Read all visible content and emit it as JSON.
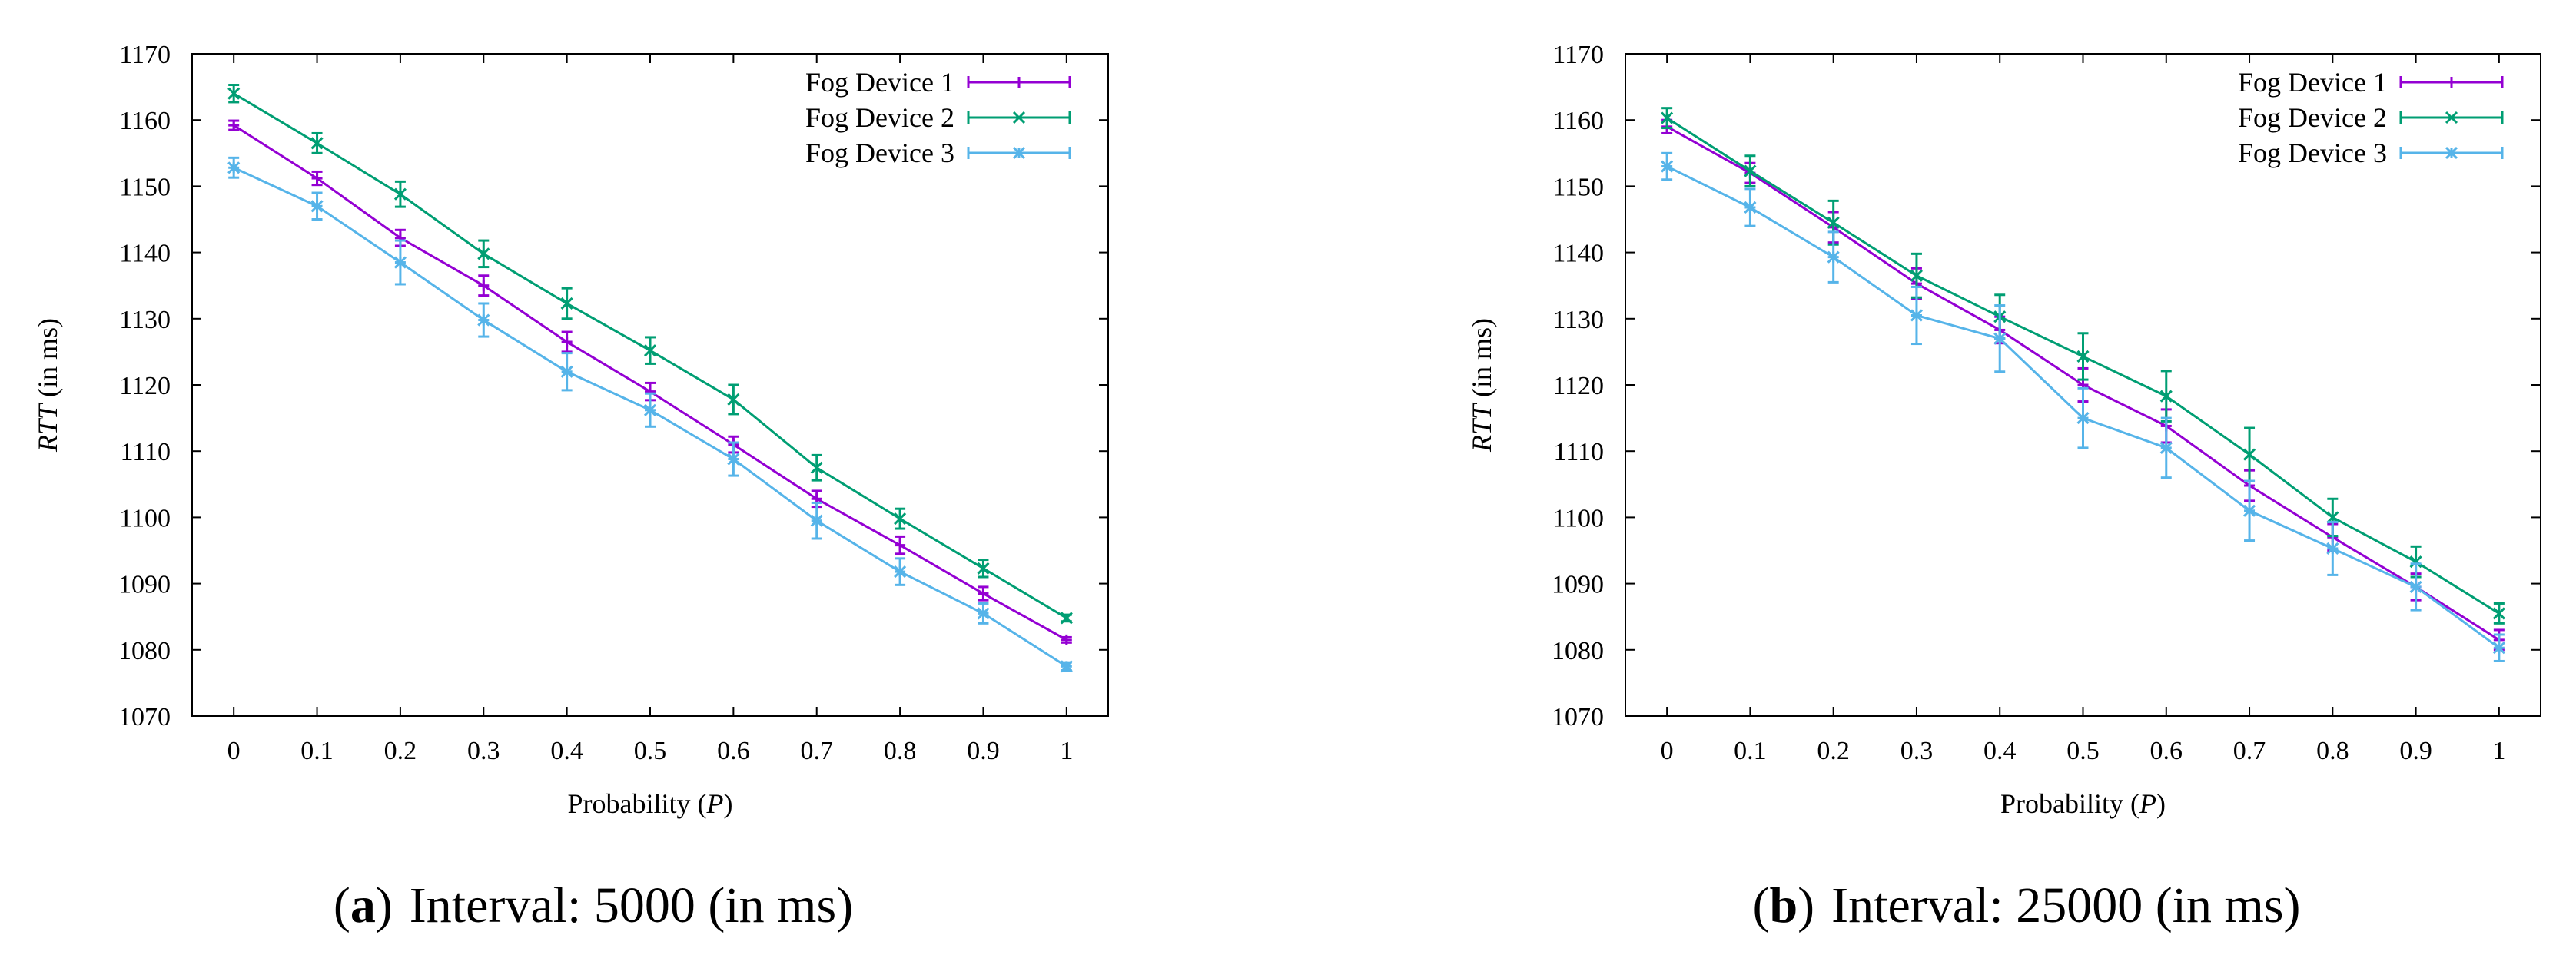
{
  "chart_data": [
    {
      "type": "line",
      "caption_letter": "a",
      "caption_text": "Interval: 5000 (in ms)",
      "xlabel_prefix": "Probability (",
      "xlabel_var": "P",
      "xlabel_suffix": ")",
      "ylabel_var": "RTT",
      "ylabel_suffix": " (in ms)",
      "x": [
        0,
        0.1,
        0.2,
        0.3,
        0.4,
        0.5,
        0.6,
        0.7,
        0.8,
        0.9,
        1
      ],
      "x_tick_labels": [
        "0",
        "0.1",
        "0.2",
        "0.3",
        "0.4",
        "0.5",
        "0.6",
        "0.7",
        "0.8",
        "0.9",
        "1"
      ],
      "xlim": [
        -0.05,
        1.05
      ],
      "ylim": [
        1070,
        1170
      ],
      "y_ticks": [
        1070,
        1080,
        1090,
        1100,
        1110,
        1120,
        1130,
        1140,
        1150,
        1160,
        1170
      ],
      "series": [
        {
          "name": "Fog Device 1",
          "color": "#9400D3",
          "marker": "plus",
          "values": [
            1159.2,
            1151.2,
            1142.2,
            1135.0,
            1126.5,
            1119.0,
            1111.0,
            1102.8,
            1095.8,
            1088.5,
            1081.5
          ],
          "errors": [
            0.7,
            1.0,
            1.2,
            1.5,
            1.5,
            1.3,
            1.2,
            1.2,
            1.3,
            1.0,
            0.4
          ]
        },
        {
          "name": "Fog Device 2",
          "color": "#009E73",
          "marker": "x",
          "values": [
            1164.0,
            1156.5,
            1148.8,
            1139.8,
            1132.3,
            1125.2,
            1117.8,
            1107.5,
            1099.8,
            1092.3,
            1084.8
          ],
          "errors": [
            1.3,
            1.5,
            1.9,
            2.0,
            2.3,
            2.0,
            2.2,
            1.9,
            1.5,
            1.3,
            0.5
          ]
        },
        {
          "name": "Fog Device 3",
          "color": "#56B4E9",
          "marker": "star",
          "values": [
            1152.8,
            1147.0,
            1138.5,
            1129.8,
            1122.0,
            1116.2,
            1108.8,
            1099.5,
            1091.8,
            1085.5,
            1077.5
          ],
          "errors": [
            1.5,
            2.0,
            3.3,
            2.5,
            2.8,
            2.5,
            2.5,
            2.7,
            2.0,
            1.5,
            0.6
          ]
        }
      ]
    },
    {
      "type": "line",
      "caption_letter": "b",
      "caption_text": "Interval: 25000 (in ms)",
      "xlabel_prefix": "Probability (",
      "xlabel_var": "P",
      "xlabel_suffix": ")",
      "ylabel_var": "RTT",
      "ylabel_suffix": " (in ms)",
      "x": [
        0,
        0.1,
        0.2,
        0.3,
        0.4,
        0.5,
        0.6,
        0.7,
        0.8,
        0.9,
        1
      ],
      "x_tick_labels": [
        "0",
        "0.1",
        "0.2",
        "0.3",
        "0.4",
        "0.5",
        "0.6",
        "0.7",
        "0.8",
        "0.9",
        "1"
      ],
      "xlim": [
        -0.05,
        1.05
      ],
      "ylim": [
        1070,
        1170
      ],
      "y_ticks": [
        1070,
        1080,
        1090,
        1100,
        1110,
        1120,
        1130,
        1140,
        1150,
        1160,
        1170
      ],
      "series": [
        {
          "name": "Fog Device 1",
          "color": "#9400D3",
          "marker": "plus",
          "values": [
            1159.0,
            1152.0,
            1143.8,
            1135.3,
            1128.3,
            1120.0,
            1113.8,
            1104.8,
            1097.0,
            1089.5,
            1081.5
          ],
          "errors": [
            1.0,
            1.5,
            2.3,
            2.3,
            2.0,
            2.5,
            2.5,
            2.3,
            2.0,
            2.0,
            1.5
          ]
        },
        {
          "name": "Fog Device 2",
          "color": "#009E73",
          "marker": "x",
          "values": [
            1160.3,
            1152.3,
            1144.5,
            1136.5,
            1130.3,
            1124.3,
            1118.3,
            1109.5,
            1100.0,
            1093.3,
            1085.5
          ],
          "errors": [
            1.5,
            2.3,
            3.3,
            3.3,
            3.3,
            3.5,
            3.8,
            4.0,
            2.8,
            2.3,
            1.5
          ]
        },
        {
          "name": "Fog Device 3",
          "color": "#56B4E9",
          "marker": "star",
          "values": [
            1153.0,
            1146.8,
            1139.3,
            1130.5,
            1127.0,
            1115.0,
            1110.5,
            1101.0,
            1095.3,
            1089.5,
            1080.3
          ],
          "errors": [
            2.0,
            2.8,
            3.8,
            4.3,
            5.0,
            4.5,
            4.5,
            4.5,
            4.0,
            3.5,
            2.0
          ]
        }
      ]
    }
  ]
}
